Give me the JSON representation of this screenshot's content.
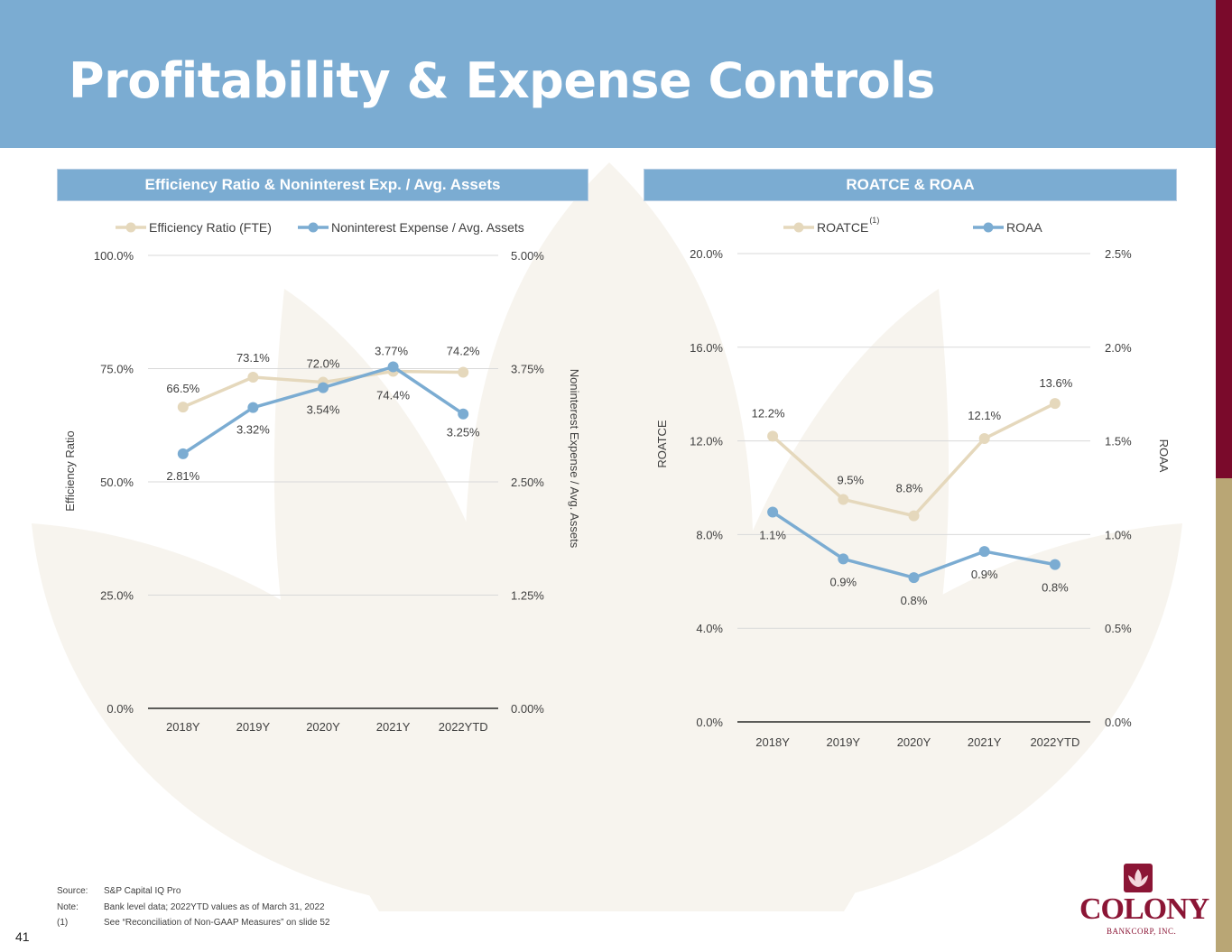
{
  "page": {
    "title": "Profitability & Expense Controls",
    "page_number": "41"
  },
  "colors": {
    "header": "#7bacd2",
    "tan_series": "#e5d8bc",
    "blue_series": "#7bacd2",
    "brand_maroon": "#7a0a2b",
    "brand_gold": "#b9a675"
  },
  "footnotes": [
    {
      "key": "Source:",
      "text": "S&P Capital IQ Pro"
    },
    {
      "key": "Note:",
      "text": "Bank level data; 2022YTD values as of March 31, 2022"
    },
    {
      "key": "(1)",
      "text": "See “Reconciliation of Non-GAAP Measures” on slide 52"
    }
  ],
  "logo": {
    "word": "COLONY",
    "sub": "BANKCORP, INC."
  },
  "chart_data": [
    {
      "type": "line",
      "panel_title": "Efficiency Ratio & Noninterest Exp. / Avg. Assets",
      "categories": [
        "2018Y",
        "2019Y",
        "2020Y",
        "2021Y",
        "2022YTD"
      ],
      "series": [
        {
          "name": "Efficiency Ratio (FTE)",
          "axis": "left",
          "color": "#e5d8bc",
          "values": [
            66.5,
            73.1,
            72.0,
            74.4,
            74.2
          ],
          "labels": [
            "66.5%",
            "73.1%",
            "72.0%",
            "74.4%",
            "74.2%"
          ]
        },
        {
          "name": "Noninterest Expense / Avg. Assets",
          "axis": "right",
          "color": "#7bacd2",
          "values": [
            2.81,
            3.32,
            3.54,
            3.77,
            3.25
          ],
          "labels": [
            "2.81%",
            "3.32%",
            "3.54%",
            "3.77%",
            "3.25%"
          ]
        }
      ],
      "ylabel": "Efficiency Ratio",
      "y2label": "Noninterest Expense / Avg. Assets",
      "ylim": [
        0,
        100
      ],
      "y2lim": [
        0,
        5
      ],
      "yticks": [
        "0.0%",
        "25.0%",
        "50.0%",
        "75.0%",
        "100.0%"
      ],
      "y2ticks": [
        "0.00%",
        "1.25%",
        "2.50%",
        "3.75%",
        "5.00%"
      ]
    },
    {
      "type": "line",
      "panel_title": "ROATCE & ROAA",
      "categories": [
        "2018Y",
        "2019Y",
        "2020Y",
        "2021Y",
        "2022YTD"
      ],
      "series": [
        {
          "name": "ROATCE",
          "superscript": "(1)",
          "axis": "left",
          "color": "#e5d8bc",
          "values": [
            12.2,
            9.5,
            8.8,
            12.1,
            13.6
          ],
          "labels": [
            "12.2%",
            "9.5%",
            "8.8%",
            "12.1%",
            "13.6%"
          ]
        },
        {
          "name": "ROAA",
          "axis": "right",
          "color": "#7bacd2",
          "values": [
            1.12,
            0.87,
            0.77,
            0.91,
            0.84
          ],
          "labels": [
            "1.1%",
            "0.9%",
            "0.8%",
            "0.9%",
            "0.8%"
          ]
        }
      ],
      "ylabel": "ROATCE",
      "y2label": "ROAA",
      "ylim": [
        0,
        20
      ],
      "y2lim": [
        0,
        2.5
      ],
      "yticks": [
        "0.0%",
        "4.0%",
        "8.0%",
        "12.0%",
        "16.0%",
        "20.0%"
      ],
      "y2ticks": [
        "0.0%",
        "0.5%",
        "1.0%",
        "1.5%",
        "2.0%",
        "2.5%"
      ]
    }
  ]
}
